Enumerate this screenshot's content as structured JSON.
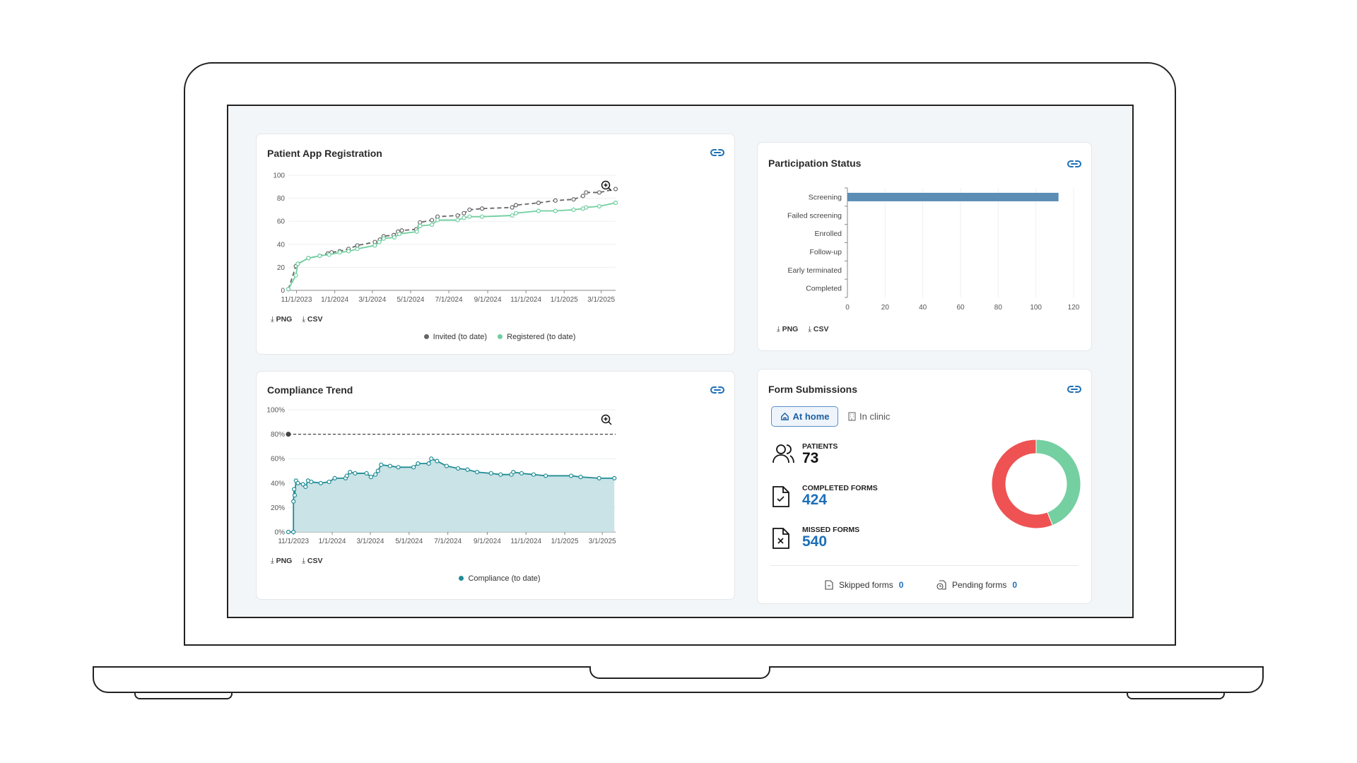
{
  "colors": {
    "accent": "#1d6fb8",
    "invited": "#666666",
    "registered": "#6fcf9f",
    "compliance": "#1f8c96",
    "compliance_fill": "#c6e2e5",
    "bar": "#5b8db5",
    "donut_completed": "#74cfa1",
    "donut_missed": "#ee5253"
  },
  "download": {
    "png": "PNG",
    "csv": "CSV"
  },
  "registration": {
    "title": "Patient App Registration",
    "chart_data": {
      "type": "line",
      "ylim": [
        0,
        100
      ],
      "yticks": [
        "0",
        "20",
        "40",
        "60",
        "80",
        "100"
      ],
      "xticks": [
        "11/1/2023",
        "1/1/2024",
        "3/1/2024",
        "5/1/2024",
        "7/1/2024",
        "9/1/2024",
        "11/1/2024",
        "1/1/2025",
        "3/1/2025"
      ],
      "xlim": [
        "2023-10-19",
        "2025-03-24"
      ],
      "legend_position": "bottom",
      "series": [
        {
          "name": "Invited (to date)",
          "style": "dashed",
          "points": [
            [
              "2023-10-19",
              1
            ],
            [
              "2023-10-31",
              21
            ],
            [
              "2023-11-03",
              23
            ],
            [
              "2023-11-20",
              28
            ],
            [
              "2023-12-08",
              30
            ],
            [
              "2023-12-21",
              32
            ],
            [
              "2023-12-27",
              33
            ],
            [
              "2024-01-09",
              34
            ],
            [
              "2024-01-23",
              36
            ],
            [
              "2024-02-06",
              39
            ],
            [
              "2024-03-05",
              42
            ],
            [
              "2024-03-13",
              44
            ],
            [
              "2024-03-19",
              47
            ],
            [
              "2024-04-04",
              48
            ],
            [
              "2024-04-11",
              51
            ],
            [
              "2024-04-17",
              52
            ],
            [
              "2024-05-10",
              53
            ],
            [
              "2024-05-16",
              59
            ],
            [
              "2024-06-04",
              61
            ],
            [
              "2024-06-13",
              64
            ],
            [
              "2024-07-15",
              65
            ],
            [
              "2024-07-25",
              67
            ],
            [
              "2024-08-03",
              70
            ],
            [
              "2024-08-23",
              71
            ],
            [
              "2024-10-10",
              72
            ],
            [
              "2024-10-16",
              74
            ],
            [
              "2024-11-21",
              76
            ],
            [
              "2024-12-18",
              78
            ],
            [
              "2025-01-16",
              79
            ],
            [
              "2025-01-31",
              82
            ],
            [
              "2025-02-05",
              85
            ],
            [
              "2025-02-26",
              85
            ],
            [
              "2025-03-24",
              88
            ]
          ]
        },
        {
          "name": "Registered (to date)",
          "style": "solid",
          "points": [
            [
              "2023-10-19",
              1
            ],
            [
              "2023-10-31",
              13
            ],
            [
              "2023-11-03",
              23
            ],
            [
              "2023-11-20",
              28
            ],
            [
              "2023-12-08",
              30
            ],
            [
              "2023-12-23",
              31
            ],
            [
              "2024-01-09",
              33
            ],
            [
              "2024-01-23",
              34
            ],
            [
              "2024-02-06",
              36
            ],
            [
              "2024-03-05",
              39
            ],
            [
              "2024-03-12",
              42
            ],
            [
              "2024-03-19",
              45
            ],
            [
              "2024-04-05",
              46
            ],
            [
              "2024-04-13",
              49
            ],
            [
              "2024-05-11",
              51
            ],
            [
              "2024-05-16",
              56
            ],
            [
              "2024-06-04",
              57
            ],
            [
              "2024-06-13",
              61
            ],
            [
              "2024-07-15",
              61
            ],
            [
              "2024-07-25",
              63
            ],
            [
              "2024-08-03",
              64
            ],
            [
              "2024-08-23",
              64
            ],
            [
              "2024-10-10",
              65
            ],
            [
              "2024-10-16",
              67
            ],
            [
              "2024-11-21",
              69
            ],
            [
              "2024-12-18",
              69
            ],
            [
              "2025-01-16",
              70
            ],
            [
              "2025-01-31",
              71
            ],
            [
              "2025-02-05",
              72
            ],
            [
              "2025-02-26",
              73
            ],
            [
              "2025-03-24",
              76
            ]
          ]
        }
      ]
    }
  },
  "participation": {
    "title": "Participation Status",
    "chart_data": {
      "type": "bar",
      "orientation": "horizontal",
      "categories": [
        "Screening",
        "Failed screening",
        "Enrolled",
        "Follow-up",
        "Early terminated",
        "Completed"
      ],
      "values": [
        112,
        0,
        0,
        0,
        0,
        0
      ],
      "xlim": [
        0,
        120
      ],
      "xticks": [
        "0",
        "20",
        "40",
        "60",
        "80",
        "100",
        "120"
      ],
      "grid": true
    }
  },
  "compliance": {
    "title": "Compliance Trend",
    "chart_data": {
      "type": "area",
      "ylim": [
        0,
        100
      ],
      "yticks": [
        "0%",
        "20%",
        "40%",
        "60%",
        "80%",
        "100%"
      ],
      "xticks": [
        "11/1/2023",
        "1/1/2024",
        "3/1/2024",
        "5/1/2024",
        "7/1/2024",
        "9/1/2024",
        "11/1/2024",
        "1/1/2025",
        "3/1/2025"
      ],
      "xlim": [
        "2023-10-24",
        "2025-03-22"
      ],
      "target": 80,
      "legend_position": "bottom",
      "series": [
        {
          "name": "Compliance (to date)",
          "points": [
            [
              "2023-10-24",
              0
            ],
            [
              "2023-11-01",
              0
            ],
            [
              "2023-11-01",
              25
            ],
            [
              "2023-11-02",
              35
            ],
            [
              "2023-11-03",
              30
            ],
            [
              "2023-11-05",
              42
            ],
            [
              "2023-11-08",
              40
            ],
            [
              "2023-11-16",
              39
            ],
            [
              "2023-11-20",
              37
            ],
            [
              "2023-11-24",
              42
            ],
            [
              "2023-11-29",
              41
            ],
            [
              "2023-12-14",
              40
            ],
            [
              "2023-12-27",
              41
            ],
            [
              "2024-01-05",
              44
            ],
            [
              "2024-01-22",
              44
            ],
            [
              "2024-01-24",
              46
            ],
            [
              "2024-01-29",
              49
            ],
            [
              "2024-02-06",
              48
            ],
            [
              "2024-02-24",
              48
            ],
            [
              "2024-03-02",
              45
            ],
            [
              "2024-03-09",
              47
            ],
            [
              "2024-03-13",
              50
            ],
            [
              "2024-03-18",
              55
            ],
            [
              "2024-04-01",
              54
            ],
            [
              "2024-04-14",
              53
            ],
            [
              "2024-05-08",
              53
            ],
            [
              "2024-05-15",
              56
            ],
            [
              "2024-06-01",
              56
            ],
            [
              "2024-06-05",
              60
            ],
            [
              "2024-06-14",
              58
            ],
            [
              "2024-06-29",
              54
            ],
            [
              "2024-07-17",
              52
            ],
            [
              "2024-08-01",
              51
            ],
            [
              "2024-08-16",
              49
            ],
            [
              "2024-09-07",
              48
            ],
            [
              "2024-09-22",
              47
            ],
            [
              "2024-10-09",
              47
            ],
            [
              "2024-10-12",
              49
            ],
            [
              "2024-10-25",
              48
            ],
            [
              "2024-11-13",
              47
            ],
            [
              "2024-12-02",
              46
            ],
            [
              "2025-01-11",
              46
            ],
            [
              "2025-01-26",
              45
            ],
            [
              "2025-02-24",
              44
            ],
            [
              "2025-03-20",
              44
            ]
          ]
        }
      ]
    }
  },
  "forms": {
    "title": "Form Submissions",
    "tabs": [
      {
        "label": "At home",
        "active": true
      },
      {
        "label": "In clinic",
        "active": false
      }
    ],
    "patients_label": "PATIENTS",
    "patients": "73",
    "completed_label": "COMPLETED FORMS",
    "completed": "424",
    "missed_label": "MISSED FORMS",
    "missed": "540",
    "skipped_label": "Skipped forms",
    "skipped": "0",
    "pending_label": "Pending forms",
    "pending": "0",
    "chart_data": {
      "type": "pie",
      "style": "donut",
      "categories": [
        "Completed forms",
        "Missed forms"
      ],
      "values": [
        424,
        540
      ]
    }
  }
}
